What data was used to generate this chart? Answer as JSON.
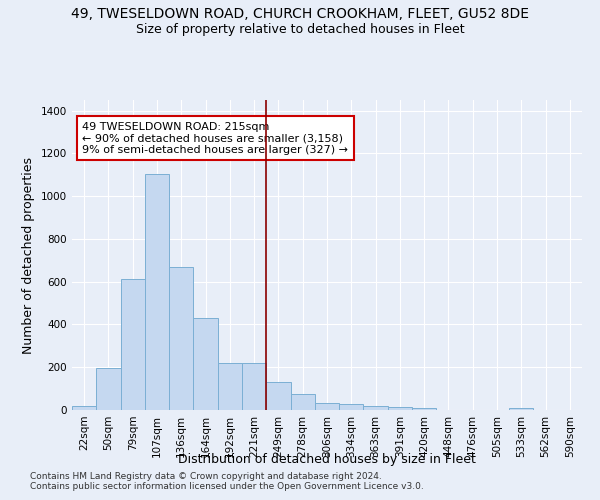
{
  "title_line1": "49, TWESELDOWN ROAD, CHURCH CROOKHAM, FLEET, GU52 8DE",
  "title_line2": "Size of property relative to detached houses in Fleet",
  "xlabel": "Distribution of detached houses by size in Fleet",
  "ylabel": "Number of detached properties",
  "footnote1": "Contains HM Land Registry data © Crown copyright and database right 2024.",
  "footnote2": "Contains public sector information licensed under the Open Government Licence v3.0.",
  "annotation_line1": "49 TWESELDOWN ROAD: 215sqm",
  "annotation_line2": "← 90% of detached houses are smaller (3,158)",
  "annotation_line3": "9% of semi-detached houses are larger (327) →",
  "bar_labels": [
    "22sqm",
    "50sqm",
    "79sqm",
    "107sqm",
    "136sqm",
    "164sqm",
    "192sqm",
    "221sqm",
    "249sqm",
    "278sqm",
    "306sqm",
    "334sqm",
    "363sqm",
    "391sqm",
    "420sqm",
    "448sqm",
    "476sqm",
    "505sqm",
    "533sqm",
    "562sqm",
    "590sqm"
  ],
  "bar_values": [
    20,
    195,
    615,
    1105,
    670,
    430,
    220,
    220,
    130,
    75,
    35,
    30,
    20,
    15,
    10,
    0,
    0,
    0,
    10,
    0,
    0
  ],
  "bar_color": "#c5d8f0",
  "bar_edge_color": "#7bafd4",
  "vline_x": 7.5,
  "vline_color": "#8b0000",
  "ylim": [
    0,
    1450
  ],
  "yticks": [
    0,
    200,
    400,
    600,
    800,
    1000,
    1200,
    1400
  ],
  "bg_color": "#e8eef8",
  "plot_bg_color": "#e8eef8",
  "grid_color": "#ffffff",
  "annotation_box_color": "#ffffff",
  "annotation_box_edge": "#cc0000",
  "title_fontsize": 10,
  "subtitle_fontsize": 9,
  "axis_label_fontsize": 9,
  "tick_fontsize": 7.5,
  "annotation_fontsize": 8,
  "footnote_fontsize": 6.5
}
